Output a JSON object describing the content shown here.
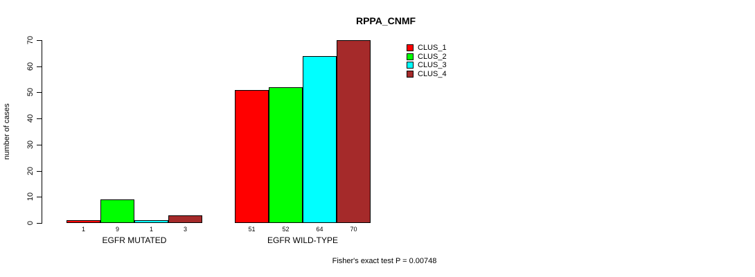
{
  "title": "RPPA_CNMF",
  "y_axis_title": "number of cases",
  "caption": "Fisher's exact test P = 0.00748",
  "chart_data": {
    "type": "bar",
    "title": "RPPA_CNMF",
    "xlabel": "",
    "ylabel": "number of cases",
    "categories": [
      "EGFR MUTATED",
      "EGFR WILD-TYPE"
    ],
    "series": [
      {
        "name": "CLUS_1",
        "color": "#ff0000",
        "values": [
          1,
          51
        ]
      },
      {
        "name": "CLUS_2",
        "color": "#00ff00",
        "values": [
          9,
          52
        ]
      },
      {
        "name": "CLUS_3",
        "color": "#00ffff",
        "values": [
          1,
          64
        ]
      },
      {
        "name": "CLUS_4",
        "color": "#a52a2a",
        "values": [
          3,
          70
        ]
      }
    ],
    "bar_value_labels": [
      [
        "1",
        "9",
        "1",
        "3"
      ],
      [
        "51",
        "52",
        "64",
        "70"
      ]
    ],
    "ylim": [
      0,
      70
    ],
    "yticks": [
      0,
      10,
      20,
      30,
      40,
      50,
      60,
      70
    ],
    "grid": false,
    "legend_position": "top-right",
    "legend_entries": [
      "CLUS_1",
      "CLUS_2",
      "CLUS_3",
      "CLUS_4"
    ],
    "annotation": "Fisher's exact test P = 0.00748"
  }
}
